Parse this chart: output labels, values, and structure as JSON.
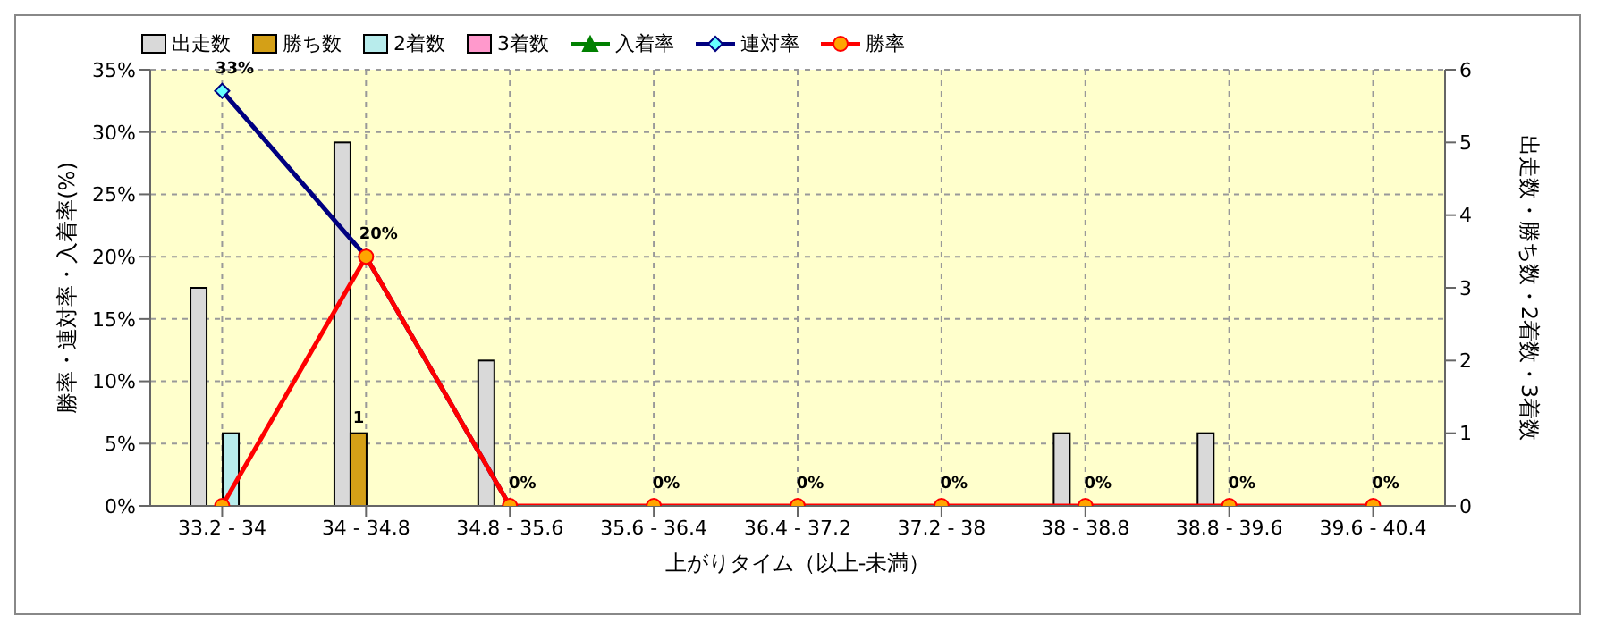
{
  "chart_data": {
    "type": "bar",
    "xlabel": "上がりタイム（以上-未満）",
    "ylabel": "勝率・連対率・入着率(%)",
    "y2label": "出走数・勝ち数・2着数・3着数",
    "categories": [
      "33.2 - 34",
      "34 - 34.8",
      "34.8 - 35.6",
      "35.6 - 36.4",
      "36.4 - 37.2",
      "37.2 - 38",
      "38 - 38.8",
      "38.8 - 39.6",
      "39.6 - 40.4"
    ],
    "series": [
      {
        "name": "出走数",
        "axis": "y2",
        "color": "#d9d9d9",
        "values": [
          3,
          5,
          2,
          0,
          0,
          0,
          1,
          1,
          0
        ]
      },
      {
        "name": "勝ち数",
        "axis": "y2",
        "color": "#d4a017",
        "values": [
          0,
          1,
          0,
          0,
          0,
          0,
          0,
          0,
          0
        ],
        "value_labels": [
          null,
          "1",
          null,
          null,
          null,
          null,
          null,
          null,
          null
        ]
      },
      {
        "name": "2着数",
        "axis": "y2",
        "color": "#b8ecec",
        "values": [
          1,
          0,
          0,
          0,
          0,
          0,
          0,
          0,
          0
        ]
      },
      {
        "name": "3着数",
        "axis": "y2",
        "color": "#ff99cc",
        "values": [
          0,
          0,
          0,
          0,
          0,
          0,
          0,
          0,
          0
        ]
      },
      {
        "name": "入着率",
        "type": "line",
        "color": "#008000",
        "marker": "triangle",
        "values": [
          null,
          null,
          null,
          null,
          null,
          null,
          null,
          null,
          null
        ]
      },
      {
        "name": "連対率",
        "type": "line",
        "color": "#000080",
        "marker": "diamond",
        "values": [
          33.3,
          20,
          0,
          null,
          null,
          null,
          null,
          null,
          null
        ],
        "value_labels": [
          "33%",
          null,
          null,
          null,
          null,
          null,
          null,
          null,
          null
        ]
      },
      {
        "name": "勝率",
        "type": "line",
        "color": "#ff0000",
        "marker": "circle",
        "values": [
          0,
          20,
          0,
          0,
          0,
          0,
          0,
          0,
          0
        ],
        "value_labels": [
          null,
          "20%",
          "0%",
          "0%",
          "0%",
          "0%",
          "0%",
          "0%",
          "0%"
        ]
      }
    ],
    "ylim": [
      0,
      35
    ],
    "yticks": [
      {
        "value": 0,
        "label": "0%"
      },
      {
        "value": 5,
        "label": "5%"
      },
      {
        "value": 10,
        "label": "10%"
      },
      {
        "value": 15,
        "label": "15%"
      },
      {
        "value": 20,
        "label": "20%"
      },
      {
        "value": 25,
        "label": "25%"
      },
      {
        "value": 30,
        "label": "30%"
      },
      {
        "value": 35,
        "label": "35%"
      }
    ],
    "y2lim": [
      0,
      6
    ],
    "y2ticks": [
      0,
      1,
      2,
      3,
      4,
      5,
      6
    ],
    "grid": true,
    "legend": "top left"
  }
}
